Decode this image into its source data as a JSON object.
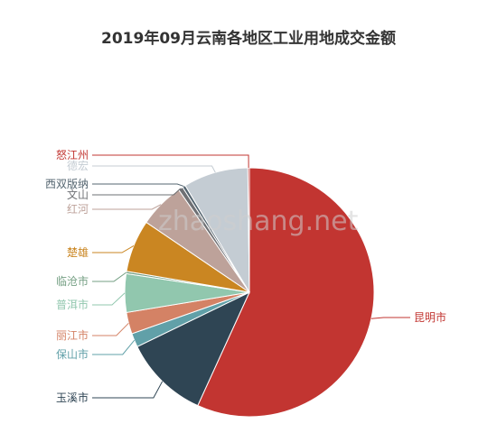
{
  "chart_data": {
    "type": "pie",
    "title": "2019年09月云南各地区工业用地成交金额",
    "slices": [
      {
        "name": "昆明市",
        "value": 56.8,
        "color": "#c23531"
      },
      {
        "name": "玉溪市",
        "value": 11.0,
        "color": "#2f4554"
      },
      {
        "name": "保山市",
        "value": 1.8,
        "color": "#61a0a8"
      },
      {
        "name": "丽江市",
        "value": 2.8,
        "color": "#d48265"
      },
      {
        "name": "普洱市",
        "value": 5.0,
        "color": "#91c7ae"
      },
      {
        "name": "临沧市",
        "value": 0.3,
        "color": "#749f83"
      },
      {
        "name": "楚雄",
        "value": 6.8,
        "color": "#ca8622"
      },
      {
        "name": "红河",
        "value": 5.9,
        "color": "#bda29a"
      },
      {
        "name": "文山",
        "value": 0.6,
        "color": "#6e7074"
      },
      {
        "name": "西双版纳",
        "value": 0.4,
        "color": "#546570"
      },
      {
        "name": "德宏",
        "value": 8.4,
        "color": "#c4ccd3"
      },
      {
        "name": "怒江州",
        "value": 0.2,
        "color": "#c23531"
      }
    ]
  },
  "watermark": "zhaoshang.net"
}
